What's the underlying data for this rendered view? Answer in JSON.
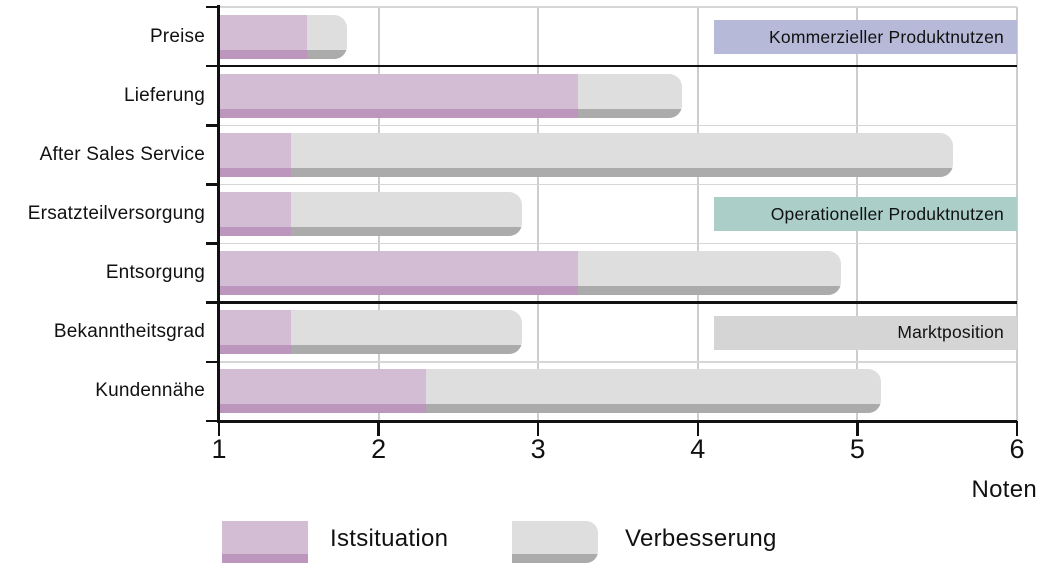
{
  "chart_data": {
    "type": "bar",
    "orientation": "horizontal",
    "stacked": true,
    "bars_start_at": 1,
    "xlabel": "Noten",
    "xlim": [
      1,
      6
    ],
    "x_ticks": [
      1,
      2,
      3,
      4,
      5,
      6
    ],
    "categories": [
      "Preise",
      "Lieferung",
      "After Sales Service",
      "Ersatzteilversorgung",
      "Entsorgung",
      "Bekanntheitsgrad",
      "Kundennähe"
    ],
    "series": [
      {
        "name": "Istsituation",
        "end_values": [
          1.55,
          3.25,
          1.45,
          1.45,
          3.25,
          1.45,
          2.3
        ]
      },
      {
        "name": "Verbesserung",
        "end_values": [
          1.8,
          3.9,
          5.6,
          2.9,
          4.9,
          2.9,
          5.15
        ]
      }
    ],
    "groups": [
      {
        "label": "Kommerzieller Produktnutzen",
        "first_row": 0,
        "last_row": 0,
        "label_row": 0,
        "band_span": [
          4.1,
          6.0
        ],
        "band_color": "#b6bad8"
      },
      {
        "label": "Operationeller Produktnutzen",
        "first_row": 1,
        "last_row": 4,
        "label_row": 3,
        "band_span": [
          4.1,
          6.0
        ],
        "band_color": "#abcfc8"
      },
      {
        "label": "Marktposition",
        "first_row": 5,
        "last_row": 6,
        "label_row": 5,
        "band_span": [
          4.1,
          6.0
        ],
        "band_color": "#d5d5d5"
      }
    ],
    "grid": "on",
    "legend_position": "bottom"
  },
  "colors": {
    "ist_fill": "#d3bdd5",
    "ist_shade": "#bc96bd",
    "verb_fill": "#dedede",
    "verb_shade": "#ababab",
    "axis": "#111111",
    "gridline": "#cdcdcd",
    "row_line": "#d6d6d6"
  },
  "axis": {
    "xlabel": "Noten"
  },
  "legend": {
    "items": [
      {
        "label": "Istsituation",
        "fill": "#d3bdd5",
        "shade": "#bc96bd",
        "rounded": false
      },
      {
        "label": "Verbesserung",
        "fill": "#dedede",
        "shade": "#ababab",
        "rounded": true
      }
    ]
  }
}
